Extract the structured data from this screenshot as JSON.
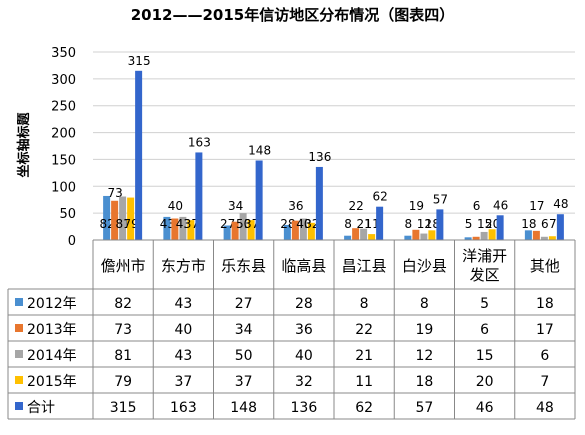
{
  "chart_data": {
    "type": "bar",
    "title": "2012——2015年信访地区分布情况（图表四）",
    "ylabel": "坐标轴标题",
    "xlabel": "",
    "ylim": [
      0,
      350
    ],
    "yticks": [
      0,
      50,
      100,
      150,
      200,
      250,
      300,
      350
    ],
    "grid": true,
    "legend": "table-left",
    "categories": [
      "儋州市",
      "东方市",
      "乐东县",
      "临高县",
      "昌江县",
      "白沙县",
      "洋浦开发区",
      "其他"
    ],
    "category_lines": [
      [
        "儋州市"
      ],
      [
        "东方市"
      ],
      [
        "乐东县"
      ],
      [
        "临高县"
      ],
      [
        "昌江县"
      ],
      [
        "白沙县"
      ],
      [
        "洋浦开",
        "发区"
      ],
      [
        "其他"
      ]
    ],
    "series": [
      {
        "name": "2012年",
        "color": "#4a8fd0",
        "values": [
          82,
          43,
          27,
          28,
          8,
          8,
          5,
          18
        ]
      },
      {
        "name": "2013年",
        "color": "#e8762e",
        "values": [
          73,
          40,
          34,
          36,
          22,
          19,
          6,
          17
        ]
      },
      {
        "name": "2014年",
        "color": "#a6a6a6",
        "values": [
          81,
          43,
          50,
          40,
          21,
          12,
          15,
          6
        ]
      },
      {
        "name": "2015年",
        "color": "#ffc000",
        "values": [
          79,
          37,
          37,
          32,
          11,
          18,
          20,
          7
        ]
      },
      {
        "name": "合计",
        "color": "#3366cc",
        "values": [
          315,
          163,
          148,
          136,
          62,
          57,
          46,
          48
        ]
      }
    ]
  }
}
